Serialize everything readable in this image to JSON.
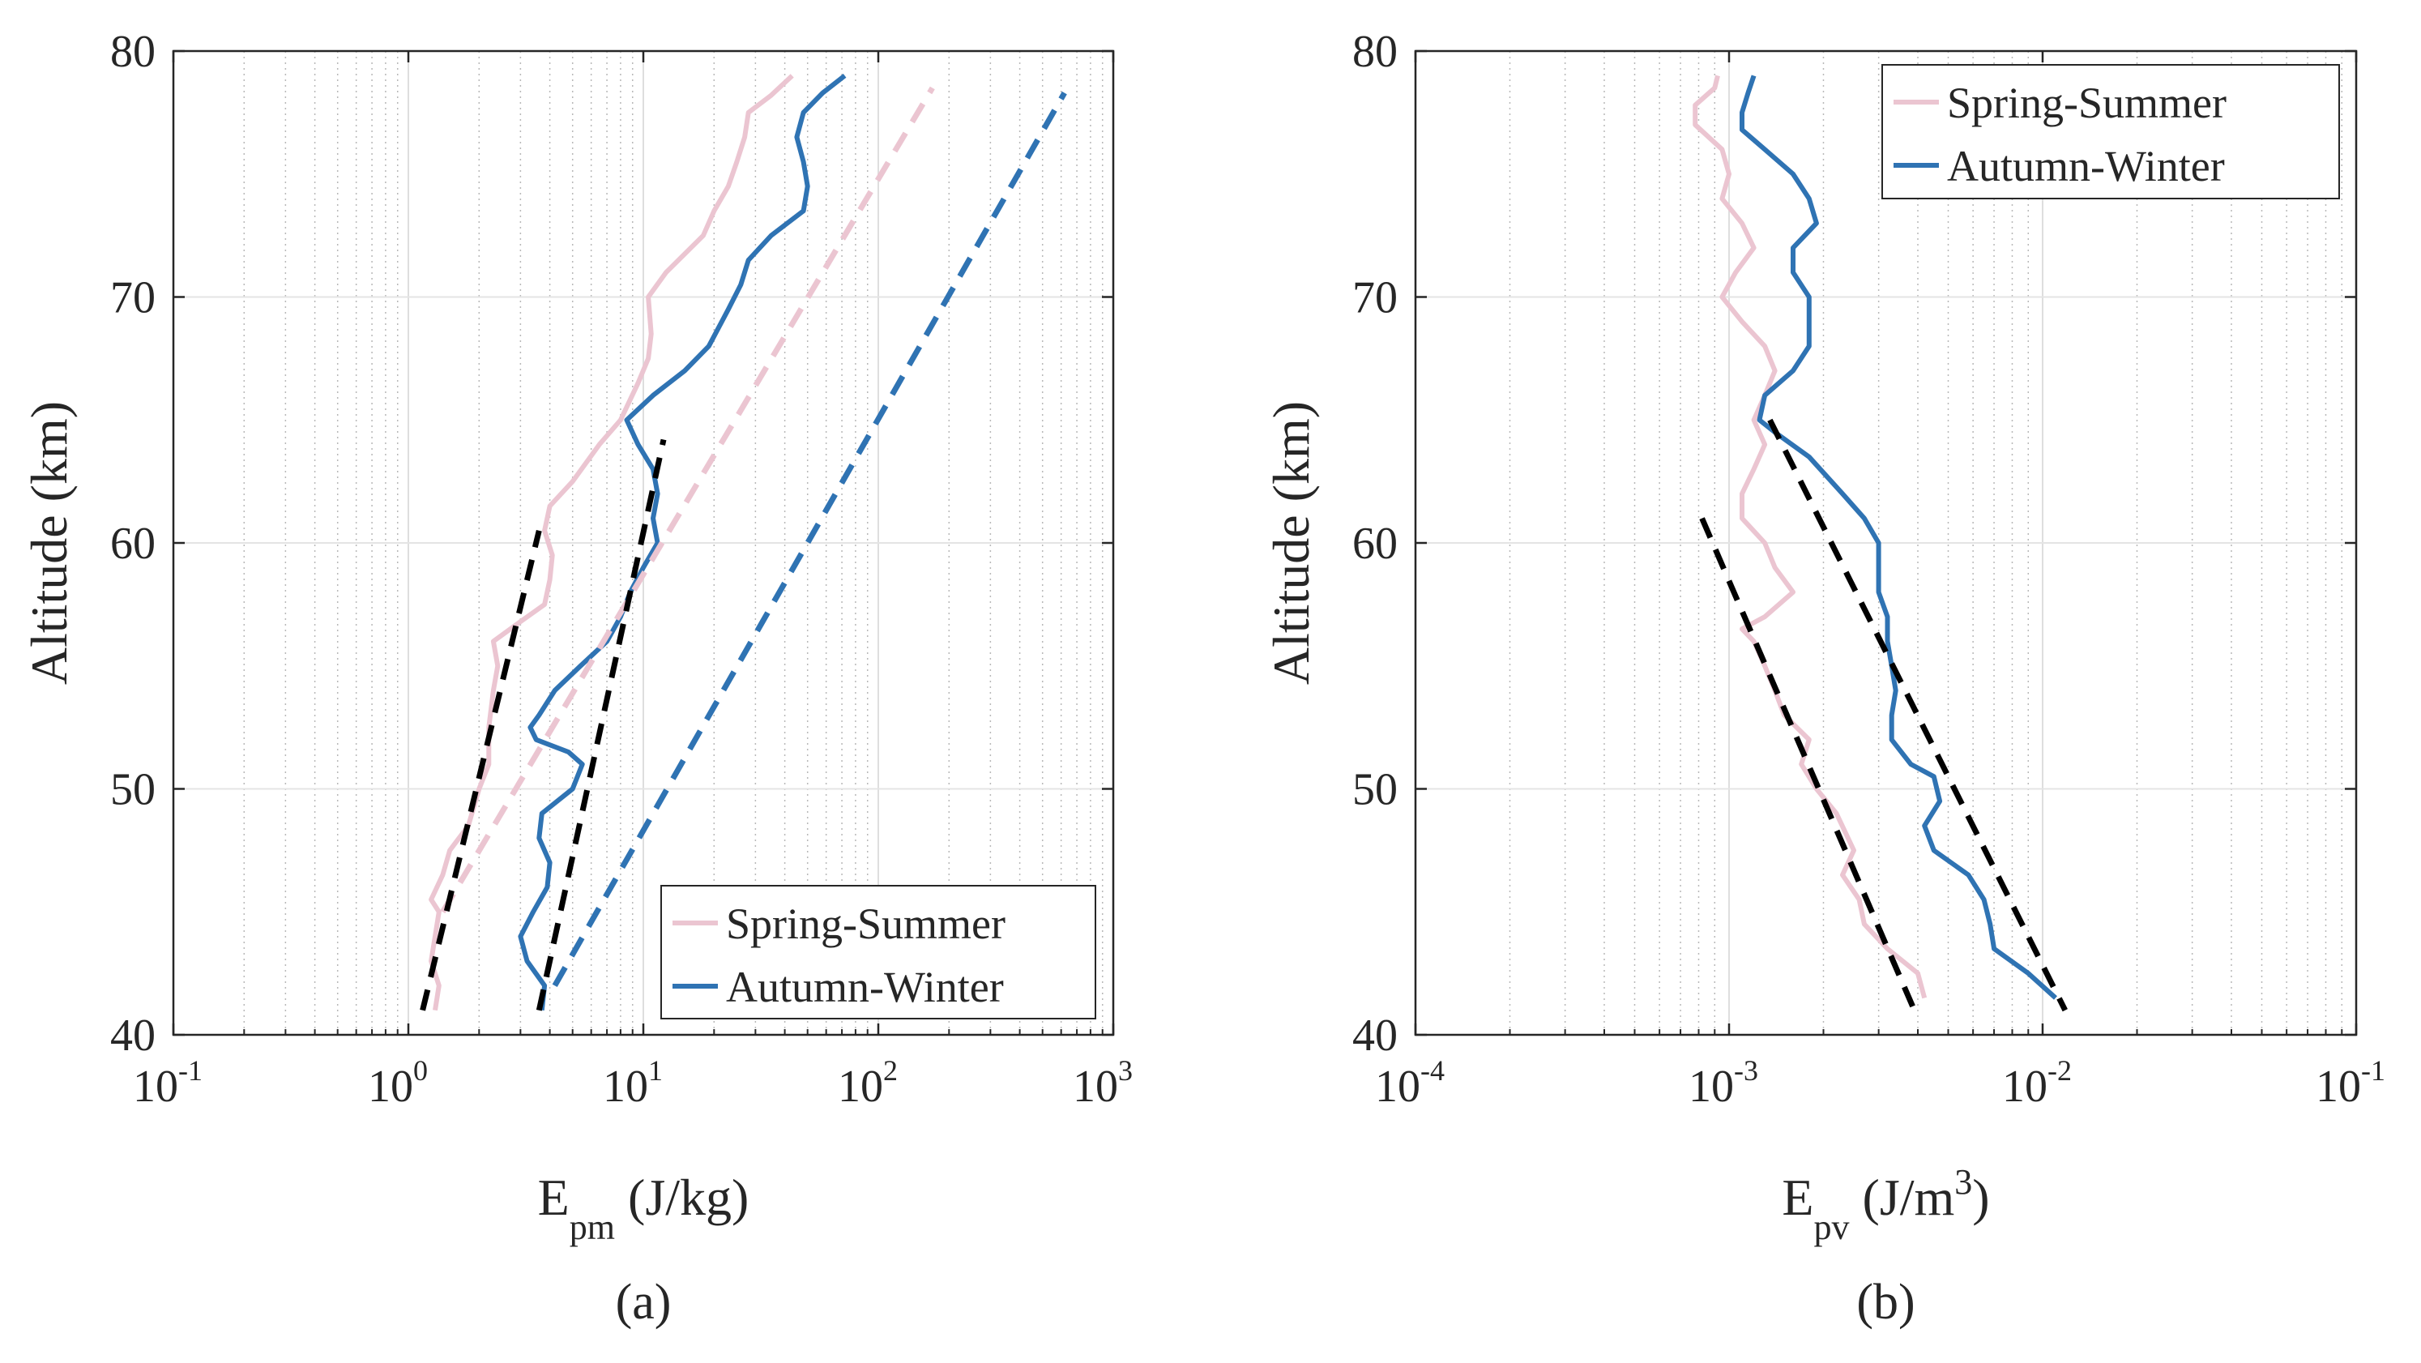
{
  "chart_data": [
    {
      "id": "a",
      "type": "line",
      "caption": "(a)",
      "xscale": "log",
      "xlim": [
        0.1,
        1000
      ],
      "ylim": [
        40,
        80
      ],
      "xticks": [
        {
          "base": "10",
          "exp": "-1"
        },
        {
          "base": "10",
          "exp": "0"
        },
        {
          "base": "10",
          "exp": "1"
        },
        {
          "base": "10",
          "exp": "2"
        },
        {
          "base": "10",
          "exp": "3"
        }
      ],
      "yticks": [
        "40",
        "50",
        "60",
        "70",
        "80"
      ],
      "ylabel": "Altitude (km)",
      "xlabel": {
        "main": "E",
        "sub": "pm",
        "unit": " (J/kg)",
        "unit_sup": ""
      },
      "legend": {
        "position": "bottom-right",
        "entries": [
          {
            "name": "Spring-Summer",
            "color": "#ebc5d1"
          },
          {
            "name": "Autumn-Winter",
            "color": "#2f73b3"
          }
        ]
      },
      "series": [
        {
          "name": "Spring-Summer",
          "color": "#ebc5d1",
          "style": "solid",
          "points": [
            [
              1.3,
              41
            ],
            [
              1.35,
              42
            ],
            [
              1.25,
              43
            ],
            [
              1.3,
              44
            ],
            [
              1.35,
              45
            ],
            [
              1.25,
              45.5
            ],
            [
              1.4,
              46.5
            ],
            [
              1.5,
              47.5
            ],
            [
              1.8,
              48.5
            ],
            [
              2.0,
              50
            ],
            [
              2.2,
              51
            ],
            [
              2.2,
              52.5
            ],
            [
              2.3,
              54
            ],
            [
              2.4,
              55
            ],
            [
              2.3,
              56
            ],
            [
              3.0,
              56.8
            ],
            [
              3.8,
              57.5
            ],
            [
              4.0,
              58.5
            ],
            [
              4.1,
              59.5
            ],
            [
              3.8,
              60.5
            ],
            [
              4.0,
              61.5
            ],
            [
              5.0,
              62.5
            ],
            [
              6.5,
              64
            ],
            [
              8.0,
              65
            ],
            [
              9.5,
              66.5
            ],
            [
              10.5,
              67.5
            ],
            [
              10.8,
              68.5
            ],
            [
              10.5,
              70
            ],
            [
              12.5,
              71
            ],
            [
              18,
              72.5
            ],
            [
              20,
              73.5
            ],
            [
              23,
              74.5
            ],
            [
              25,
              75.5
            ],
            [
              27,
              76.5
            ],
            [
              28,
              77.5
            ],
            [
              35,
              78.2
            ],
            [
              43,
              79
            ]
          ]
        },
        {
          "name": "Autumn-Winter",
          "color": "#2f73b3",
          "style": "solid",
          "points": [
            [
              3.7,
              41
            ],
            [
              3.8,
              42
            ],
            [
              3.2,
              43
            ],
            [
              3.0,
              44
            ],
            [
              3.4,
              45
            ],
            [
              3.9,
              46
            ],
            [
              4.0,
              47
            ],
            [
              3.6,
              48
            ],
            [
              3.7,
              49
            ],
            [
              5.0,
              50
            ],
            [
              5.5,
              51
            ],
            [
              4.8,
              51.5
            ],
            [
              3.5,
              52
            ],
            [
              3.3,
              52.5
            ],
            [
              3.6,
              53
            ],
            [
              4.2,
              54
            ],
            [
              5.4,
              55
            ],
            [
              7.0,
              56
            ],
            [
              8.0,
              57
            ],
            [
              8.8,
              58
            ],
            [
              10.0,
              59
            ],
            [
              11.5,
              60
            ],
            [
              11.0,
              61
            ],
            [
              11.5,
              62
            ],
            [
              11.0,
              63
            ],
            [
              9.5,
              64
            ],
            [
              8.5,
              65
            ],
            [
              11,
              66
            ],
            [
              15,
              67
            ],
            [
              19,
              68
            ],
            [
              23,
              69.5
            ],
            [
              26,
              70.5
            ],
            [
              28,
              71.5
            ],
            [
              35,
              72.5
            ],
            [
              48,
              73.5
            ],
            [
              50,
              74.5
            ],
            [
              48,
              75.5
            ],
            [
              45,
              76.5
            ],
            [
              48,
              77.5
            ],
            [
              58,
              78.3
            ],
            [
              72,
              79
            ]
          ]
        },
        {
          "name": "Spring-Summer fit",
          "color": "#ebc5d1",
          "style": "dashed",
          "points": [
            [
              1.4,
              45
            ],
            [
              170,
              78.5
            ]
          ]
        },
        {
          "name": "Autumn-Winter fit",
          "color": "#2f73b3",
          "style": "dashed",
          "points": [
            [
              4.2,
              42
            ],
            [
              620,
              78.3
            ]
          ]
        },
        {
          "name": "Spring-Summer piecewise fit",
          "color": "#000000",
          "style": "dashed",
          "points": [
            [
              1.15,
              41
            ],
            [
              3.6,
              60.5
            ]
          ]
        },
        {
          "name": "Autumn-Winter piecewise fit",
          "color": "#000000",
          "style": "dashed",
          "points": [
            [
              3.6,
              41
            ],
            [
              12.2,
              64.2
            ]
          ]
        }
      ]
    },
    {
      "id": "b",
      "type": "line",
      "caption": "(b)",
      "xscale": "log",
      "xlim": [
        0.0001,
        0.1
      ],
      "ylim": [
        40,
        80
      ],
      "xticks": [
        {
          "base": "10",
          "exp": "-4"
        },
        {
          "base": "10",
          "exp": "-3"
        },
        {
          "base": "10",
          "exp": "-2"
        },
        {
          "base": "10",
          "exp": "-1"
        }
      ],
      "yticks": [
        "40",
        "50",
        "60",
        "70",
        "80"
      ],
      "ylabel": "Altitude (km)",
      "xlabel": {
        "main": "E",
        "sub": "pv",
        "unit": " (J/m",
        "unit_sup": "3",
        "unit_end": ")"
      },
      "legend": {
        "position": "top-right",
        "entries": [
          {
            "name": "Spring-Summer",
            "color": "#ebc5d1"
          },
          {
            "name": "Autumn-Winter",
            "color": "#2f73b3"
          }
        ]
      },
      "series": [
        {
          "name": "Spring-Summer",
          "color": "#ebc5d1",
          "style": "solid",
          "points": [
            [
              0.0042,
              41.5
            ],
            [
              0.004,
              42.5
            ],
            [
              0.0032,
              43.5
            ],
            [
              0.0027,
              44.5
            ],
            [
              0.0026,
              45.5
            ],
            [
              0.0023,
              46.5
            ],
            [
              0.0025,
              47.5
            ],
            [
              0.0022,
              49
            ],
            [
              0.0019,
              50
            ],
            [
              0.0017,
              51
            ],
            [
              0.0018,
              52
            ],
            [
              0.0015,
              53
            ],
            [
              0.0014,
              54
            ],
            [
              0.0013,
              55
            ],
            [
              0.0012,
              56
            ],
            [
              0.0011,
              56.5
            ],
            [
              0.0013,
              57
            ],
            [
              0.0016,
              58
            ],
            [
              0.0014,
              59
            ],
            [
              0.0013,
              60
            ],
            [
              0.0011,
              61
            ],
            [
              0.0011,
              62
            ],
            [
              0.0012,
              63
            ],
            [
              0.0013,
              64
            ],
            [
              0.0012,
              65
            ],
            [
              0.0013,
              66
            ],
            [
              0.0014,
              67
            ],
            [
              0.0013,
              68
            ],
            [
              0.0011,
              69
            ],
            [
              0.00095,
              70
            ],
            [
              0.00105,
              71
            ],
            [
              0.0012,
              72
            ],
            [
              0.0011,
              73
            ],
            [
              0.00095,
              74
            ],
            [
              0.001,
              75
            ],
            [
              0.00095,
              76
            ],
            [
              0.00078,
              77
            ],
            [
              0.00078,
              77.8
            ],
            [
              0.0009,
              78.5
            ],
            [
              0.00092,
              79
            ]
          ]
        },
        {
          "name": "Autumn-Winter",
          "color": "#2f73b3",
          "style": "solid",
          "points": [
            [
              0.011,
              41.5
            ],
            [
              0.009,
              42.5
            ],
            [
              0.007,
              43.5
            ],
            [
              0.0068,
              44.5
            ],
            [
              0.0065,
              45.5
            ],
            [
              0.0058,
              46.5
            ],
            [
              0.0045,
              47.5
            ],
            [
              0.0042,
              48.5
            ],
            [
              0.0047,
              49.5
            ],
            [
              0.0045,
              50.5
            ],
            [
              0.0038,
              51
            ],
            [
              0.0033,
              52
            ],
            [
              0.0033,
              53
            ],
            [
              0.0034,
              54
            ],
            [
              0.0033,
              55
            ],
            [
              0.0032,
              56
            ],
            [
              0.0032,
              57
            ],
            [
              0.003,
              58
            ],
            [
              0.003,
              59
            ],
            [
              0.003,
              60
            ],
            [
              0.0027,
              61
            ],
            [
              0.0023,
              62
            ],
            [
              0.0018,
              63.5
            ],
            [
              0.0014,
              64.5
            ],
            [
              0.00125,
              65
            ],
            [
              0.0013,
              66
            ],
            [
              0.0016,
              67
            ],
            [
              0.0018,
              68
            ],
            [
              0.0018,
              69
            ],
            [
              0.0018,
              70
            ],
            [
              0.0016,
              71
            ],
            [
              0.0016,
              72
            ],
            [
              0.0019,
              73
            ],
            [
              0.0018,
              74
            ],
            [
              0.0016,
              75
            ],
            [
              0.0013,
              76
            ],
            [
              0.0011,
              76.8
            ],
            [
              0.0011,
              77.5
            ],
            [
              0.00115,
              78.3
            ],
            [
              0.0012,
              79
            ]
          ]
        },
        {
          "name": "Spring-Summer piecewise fit",
          "color": "#000000",
          "style": "dashed",
          "points": [
            [
              0.00082,
              61
            ],
            [
              0.0039,
              41
            ]
          ]
        },
        {
          "name": "Autumn-Winter piecewise fit",
          "color": "#000000",
          "style": "dashed",
          "points": [
            [
              0.00135,
              65
            ],
            [
              0.0118,
              41
            ]
          ]
        }
      ]
    }
  ]
}
